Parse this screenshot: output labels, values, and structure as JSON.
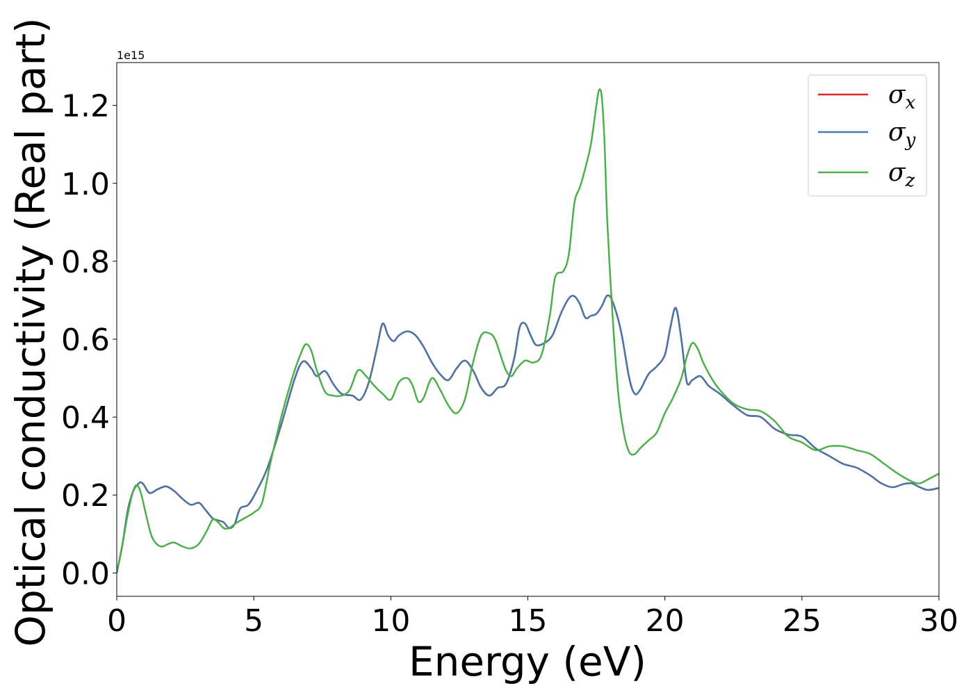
{
  "chart_data": {
    "type": "line",
    "xlabel": "Energy (eV)",
    "ylabel": "Optical conductivity (Real part)",
    "y_offset_text": "1e15",
    "xlim": [
      0,
      30
    ],
    "ylim": [
      -0.06,
      1.31
    ],
    "x_ticks": [
      0,
      5,
      10,
      15,
      20,
      25,
      30
    ],
    "x_tick_labels": [
      "0",
      "5",
      "10",
      "15",
      "20",
      "25",
      "30"
    ],
    "y_ticks": [
      0.0,
      0.2,
      0.4,
      0.6,
      0.8,
      1.0,
      1.2
    ],
    "y_tick_labels": [
      "0.0",
      "0.2",
      "0.4",
      "0.6",
      "0.8",
      "1.0",
      "1.2"
    ],
    "grid": false,
    "legend_position": "top-right",
    "series": [
      {
        "name": "σx",
        "symbol": "σ",
        "subscript": "x",
        "color": "#d62728",
        "x": [
          0,
          0.2,
          0.4,
          0.6,
          0.8,
          0.9,
          1.0,
          1.2,
          1.5,
          1.8,
          2.1,
          2.4,
          2.7,
          3.0,
          3.2,
          3.5,
          3.7,
          3.9,
          4.1,
          4.3,
          4.5,
          4.8,
          5.1,
          5.5,
          6.0,
          6.5,
          6.8,
          7.1,
          7.3,
          7.6,
          7.9,
          8.2,
          8.6,
          8.9,
          9.2,
          9.5,
          9.7,
          9.9,
          10.1,
          10.3,
          10.6,
          10.9,
          11.2,
          11.5,
          11.8,
          12.1,
          12.4,
          12.7,
          13.0,
          13.3,
          13.6,
          13.9,
          14.2,
          14.5,
          14.7,
          14.9,
          15.1,
          15.3,
          15.6,
          15.9,
          16.2,
          16.5,
          16.7,
          16.9,
          17.1,
          17.3,
          17.5,
          17.7,
          17.9,
          18.1,
          18.4,
          18.7,
          18.9,
          19.1,
          19.4,
          19.7,
          20.0,
          20.2,
          20.4,
          20.6,
          20.8,
          21.0,
          21.3,
          21.6,
          22.0,
          22.5,
          23.0,
          23.5,
          24.0,
          24.5,
          25.0,
          25.5,
          26.0,
          26.5,
          27.0,
          27.5,
          27.9,
          28.3,
          28.7,
          29.0,
          29.3,
          29.6,
          30.0
        ],
        "y": [
          0.0,
          0.07,
          0.16,
          0.21,
          0.23,
          0.232,
          0.225,
          0.205,
          0.215,
          0.222,
          0.21,
          0.19,
          0.175,
          0.18,
          0.165,
          0.14,
          0.135,
          0.13,
          0.115,
          0.125,
          0.165,
          0.175,
          0.21,
          0.27,
          0.38,
          0.5,
          0.543,
          0.525,
          0.505,
          0.518,
          0.485,
          0.46,
          0.455,
          0.445,
          0.49,
          0.58,
          0.64,
          0.61,
          0.595,
          0.61,
          0.62,
          0.61,
          0.58,
          0.54,
          0.51,
          0.495,
          0.525,
          0.545,
          0.52,
          0.475,
          0.455,
          0.475,
          0.485,
          0.55,
          0.63,
          0.64,
          0.61,
          0.585,
          0.59,
          0.61,
          0.665,
          0.705,
          0.71,
          0.69,
          0.655,
          0.66,
          0.665,
          0.685,
          0.712,
          0.695,
          0.62,
          0.5,
          0.46,
          0.47,
          0.51,
          0.53,
          0.56,
          0.63,
          0.68,
          0.6,
          0.49,
          0.495,
          0.505,
          0.48,
          0.46,
          0.43,
          0.405,
          0.4,
          0.37,
          0.355,
          0.35,
          0.32,
          0.3,
          0.28,
          0.27,
          0.25,
          0.23,
          0.22,
          0.228,
          0.23,
          0.22,
          0.213,
          0.218
        ]
      },
      {
        "name": "σy",
        "symbol": "σ",
        "subscript": "y",
        "color": "#4a76a8",
        "x": [
          0,
          0.2,
          0.4,
          0.6,
          0.8,
          0.9,
          1.0,
          1.2,
          1.5,
          1.8,
          2.1,
          2.4,
          2.7,
          3.0,
          3.2,
          3.5,
          3.7,
          3.9,
          4.1,
          4.3,
          4.5,
          4.8,
          5.1,
          5.5,
          6.0,
          6.5,
          6.8,
          7.1,
          7.3,
          7.6,
          7.9,
          8.2,
          8.6,
          8.9,
          9.2,
          9.5,
          9.7,
          9.9,
          10.1,
          10.3,
          10.6,
          10.9,
          11.2,
          11.5,
          11.8,
          12.1,
          12.4,
          12.7,
          13.0,
          13.3,
          13.6,
          13.9,
          14.2,
          14.5,
          14.7,
          14.9,
          15.1,
          15.3,
          15.6,
          15.9,
          16.2,
          16.5,
          16.7,
          16.9,
          17.1,
          17.3,
          17.5,
          17.7,
          17.9,
          18.1,
          18.4,
          18.7,
          18.9,
          19.1,
          19.4,
          19.7,
          20.0,
          20.2,
          20.4,
          20.6,
          20.8,
          21.0,
          21.3,
          21.6,
          22.0,
          22.5,
          23.0,
          23.5,
          24.0,
          24.5,
          25.0,
          25.5,
          26.0,
          26.5,
          27.0,
          27.5,
          27.9,
          28.3,
          28.7,
          29.0,
          29.3,
          29.6,
          30.0
        ],
        "y": [
          0.0,
          0.07,
          0.16,
          0.21,
          0.23,
          0.232,
          0.225,
          0.205,
          0.215,
          0.222,
          0.21,
          0.19,
          0.175,
          0.18,
          0.165,
          0.14,
          0.135,
          0.13,
          0.115,
          0.125,
          0.165,
          0.175,
          0.21,
          0.27,
          0.38,
          0.5,
          0.543,
          0.525,
          0.505,
          0.518,
          0.485,
          0.46,
          0.455,
          0.445,
          0.49,
          0.58,
          0.64,
          0.61,
          0.595,
          0.61,
          0.62,
          0.61,
          0.58,
          0.54,
          0.51,
          0.495,
          0.525,
          0.545,
          0.52,
          0.475,
          0.455,
          0.475,
          0.485,
          0.55,
          0.63,
          0.64,
          0.61,
          0.585,
          0.59,
          0.61,
          0.665,
          0.705,
          0.71,
          0.69,
          0.655,
          0.66,
          0.665,
          0.685,
          0.712,
          0.695,
          0.62,
          0.5,
          0.46,
          0.47,
          0.51,
          0.53,
          0.56,
          0.63,
          0.68,
          0.6,
          0.49,
          0.495,
          0.505,
          0.48,
          0.46,
          0.43,
          0.405,
          0.4,
          0.37,
          0.355,
          0.35,
          0.32,
          0.3,
          0.28,
          0.27,
          0.25,
          0.23,
          0.22,
          0.228,
          0.23,
          0.22,
          0.213,
          0.218
        ]
      },
      {
        "name": "σz",
        "symbol": "σ",
        "subscript": "z",
        "color": "#4daf4a",
        "x": [
          0,
          0.2,
          0.4,
          0.6,
          0.75,
          0.9,
          1.1,
          1.3,
          1.6,
          1.9,
          2.1,
          2.4,
          2.7,
          3.0,
          3.3,
          3.5,
          3.7,
          3.9,
          4.1,
          4.4,
          4.7,
          5.0,
          5.3,
          5.6,
          6.0,
          6.4,
          6.7,
          6.9,
          7.1,
          7.3,
          7.6,
          7.9,
          8.2,
          8.5,
          8.8,
          9.1,
          9.4,
          9.7,
          10.0,
          10.3,
          10.6,
          10.8,
          11.0,
          11.2,
          11.5,
          11.8,
          12.1,
          12.4,
          12.7,
          13.0,
          13.3,
          13.6,
          13.8,
          14.0,
          14.2,
          14.4,
          14.6,
          14.9,
          15.2,
          15.5,
          15.8,
          16.0,
          16.3,
          16.5,
          16.7,
          16.9,
          17.1,
          17.3,
          17.5,
          17.6,
          17.7,
          17.8,
          17.9,
          18.1,
          18.3,
          18.5,
          18.7,
          18.9,
          19.1,
          19.4,
          19.7,
          20.0,
          20.3,
          20.6,
          20.8,
          21.0,
          21.2,
          21.4,
          21.7,
          22.0,
          22.5,
          23.0,
          23.5,
          24.0,
          24.5,
          25.0,
          25.5,
          26.0,
          26.5,
          27.0,
          27.5,
          28.0,
          28.5,
          29.0,
          29.3,
          29.6,
          30.0
        ],
        "y": [
          0.0,
          0.07,
          0.15,
          0.21,
          0.225,
          0.2,
          0.14,
          0.09,
          0.068,
          0.075,
          0.078,
          0.068,
          0.063,
          0.075,
          0.11,
          0.137,
          0.13,
          0.115,
          0.115,
          0.13,
          0.142,
          0.155,
          0.18,
          0.28,
          0.4,
          0.5,
          0.56,
          0.587,
          0.57,
          0.52,
          0.465,
          0.455,
          0.455,
          0.47,
          0.52,
          0.505,
          0.48,
          0.46,
          0.445,
          0.49,
          0.5,
          0.48,
          0.44,
          0.45,
          0.5,
          0.47,
          0.43,
          0.41,
          0.445,
          0.54,
          0.61,
          0.615,
          0.6,
          0.56,
          0.52,
          0.505,
          0.525,
          0.545,
          0.54,
          0.56,
          0.66,
          0.76,
          0.775,
          0.82,
          0.95,
          0.99,
          1.04,
          1.1,
          1.2,
          1.24,
          1.22,
          1.1,
          0.9,
          0.65,
          0.46,
          0.36,
          0.31,
          0.305,
          0.32,
          0.34,
          0.36,
          0.41,
          0.45,
          0.5,
          0.555,
          0.59,
          0.575,
          0.54,
          0.5,
          0.47,
          0.435,
          0.42,
          0.415,
          0.39,
          0.35,
          0.335,
          0.315,
          0.325,
          0.325,
          0.315,
          0.305,
          0.28,
          0.255,
          0.235,
          0.23,
          0.24,
          0.255
        ]
      }
    ]
  }
}
